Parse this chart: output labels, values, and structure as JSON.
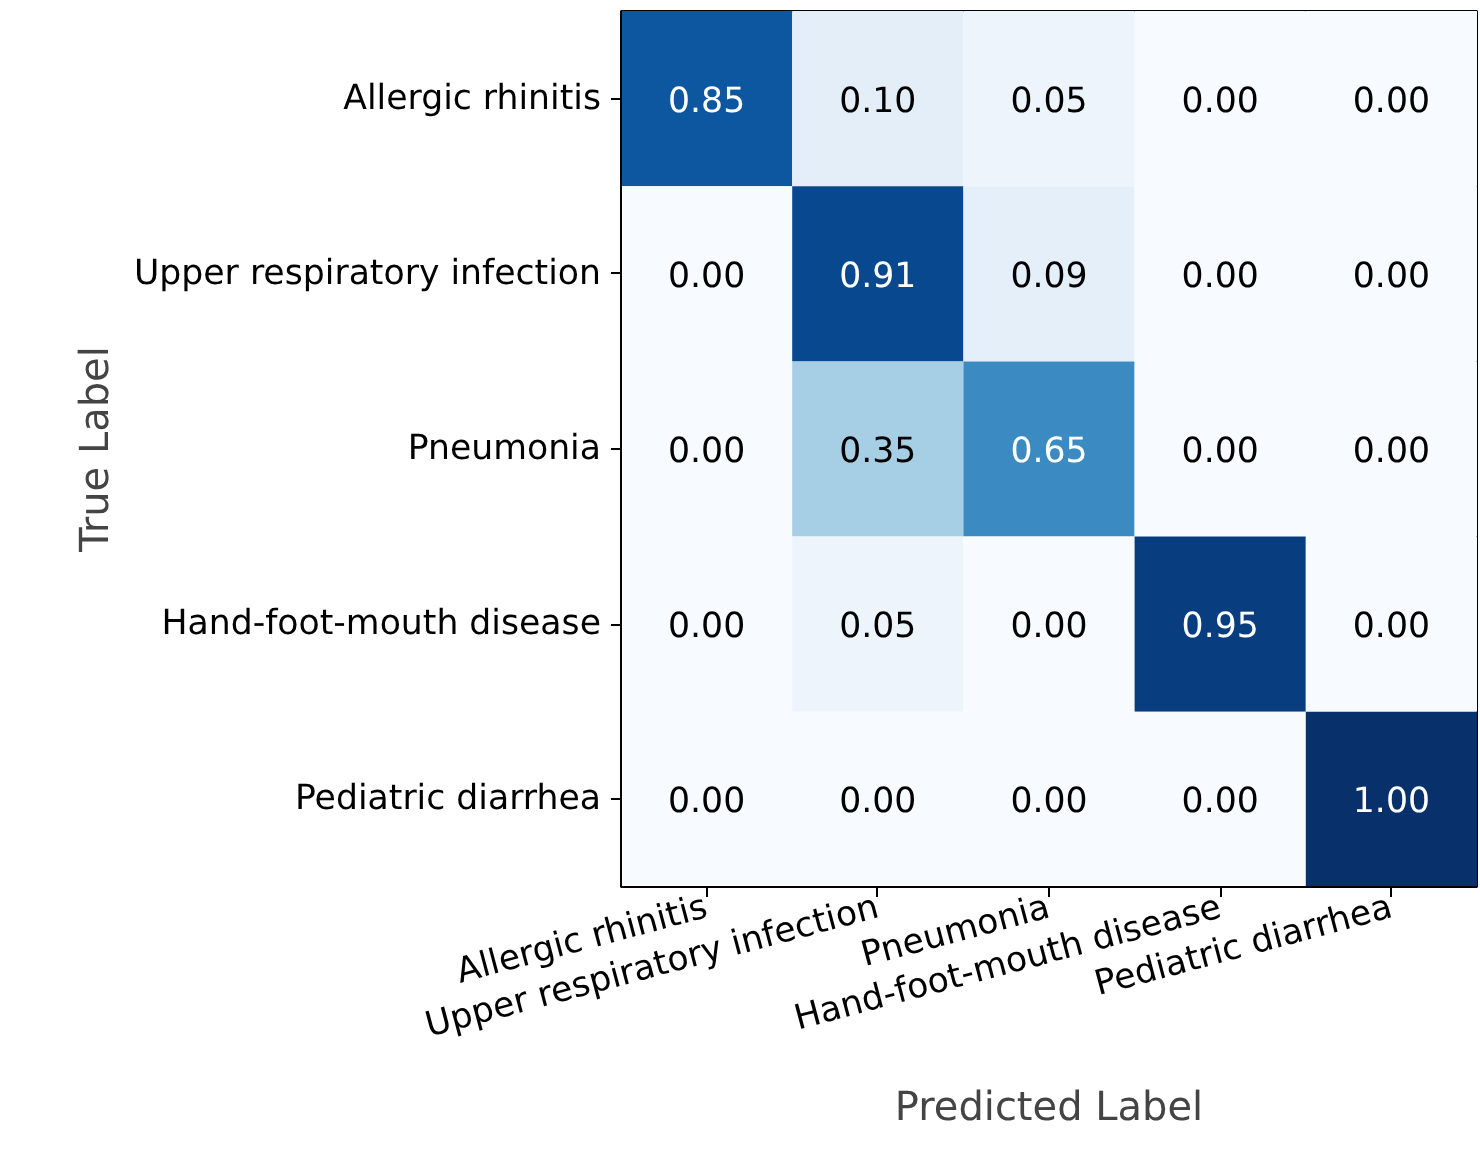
{
  "chart_data": {
    "type": "heatmap",
    "xlabel": "Predicted Label",
    "ylabel": "True Label",
    "categories": [
      "Allergic rhinitis",
      "Upper respiratory infection",
      "Pneumonia",
      "Hand-foot-mouth disease",
      "Pediatric diarrhea"
    ],
    "y_categories": [
      "Allergic rhinitis",
      "Upper respiratory infection",
      "Pneumonia",
      "Hand-foot-mouth disease",
      "Pediatric diarrhea"
    ],
    "cells": [
      [
        0.85,
        0.1,
        0.05,
        0.0,
        0.0
      ],
      [
        0.0,
        0.91,
        0.09,
        0.0,
        0.0
      ],
      [
        0.0,
        0.35,
        0.65,
        0.0,
        0.0
      ],
      [
        0.0,
        0.05,
        0.0,
        0.95,
        0.0
      ],
      [
        0.0,
        0.0,
        0.0,
        0.0,
        1.0
      ]
    ],
    "cell_labels": [
      [
        "0.85",
        "0.10",
        "0.05",
        "0.00",
        "0.00"
      ],
      [
        "0.00",
        "0.91",
        "0.09",
        "0.00",
        "0.00"
      ],
      [
        "0.00",
        "0.35",
        "0.65",
        "0.00",
        "0.00"
      ],
      [
        "0.00",
        "0.05",
        "0.00",
        "0.95",
        "0.00"
      ],
      [
        "0.00",
        "0.00",
        "0.00",
        "0.00",
        "1.00"
      ]
    ],
    "grid": false
  }
}
